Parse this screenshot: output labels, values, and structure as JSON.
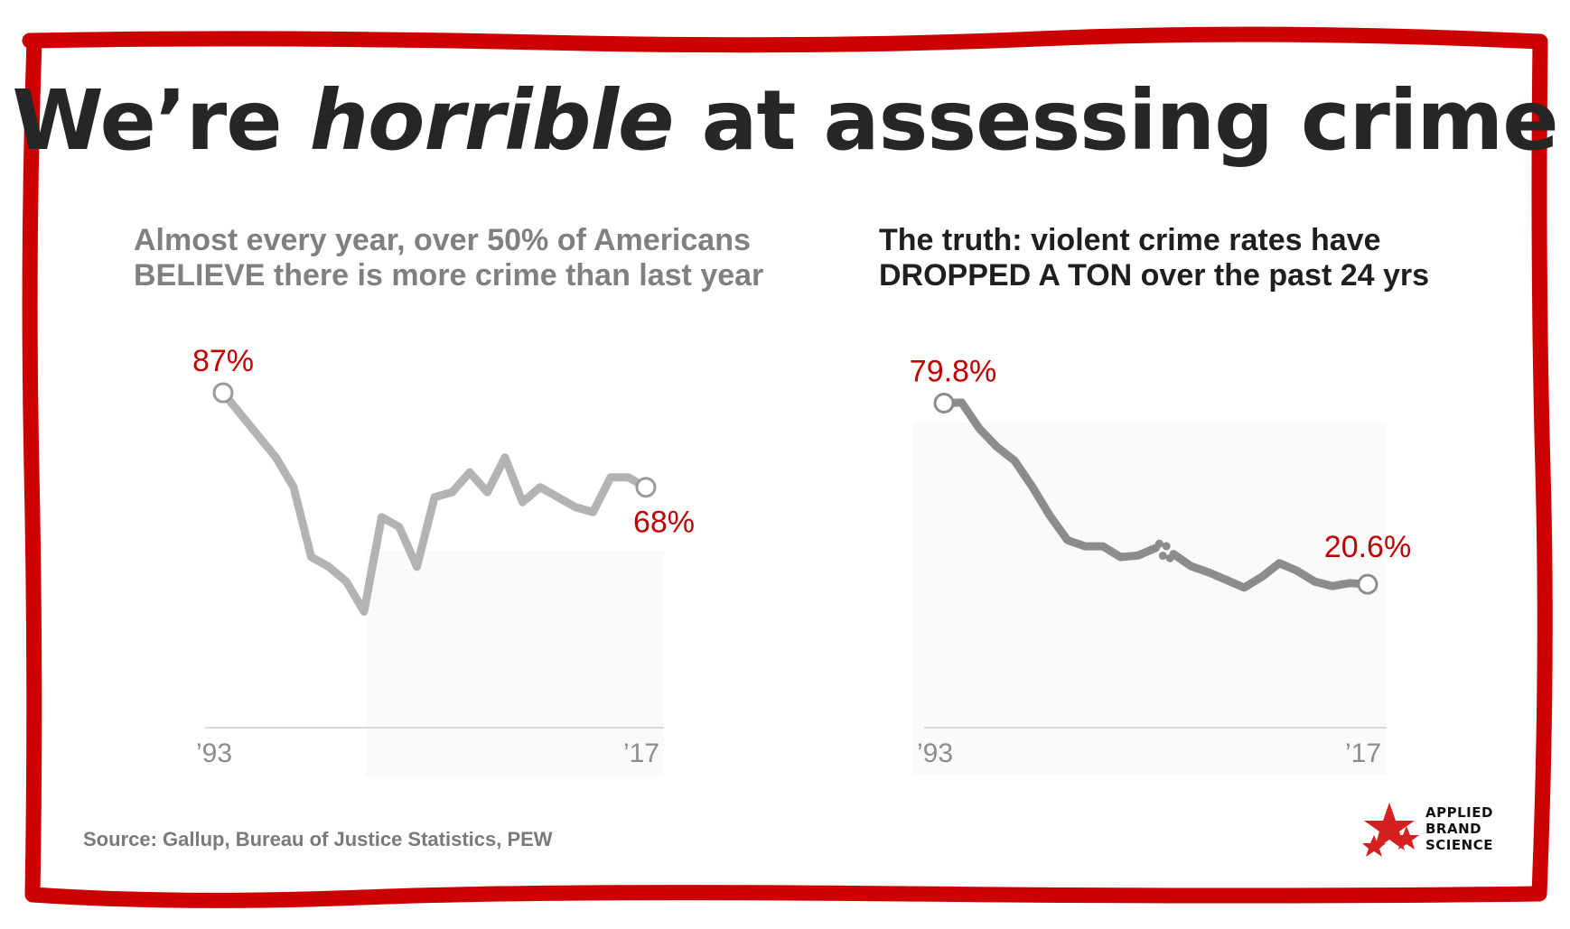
{
  "title": {
    "prefix": "We’re ",
    "emphasis": "horrible",
    "suffix": " at assessing crime"
  },
  "left_subtitle": {
    "line1": "Almost every year, over 50% of Americans",
    "line2": "BELIEVE there is more crime than last year"
  },
  "right_subtitle": {
    "line1": "The truth: violent crime rates have",
    "line2": "DROPPED A TON over the past 24 yrs"
  },
  "source": "Source: Gallup, Bureau of Justice Statistics, PEW",
  "logo": {
    "line1": "APPLIED",
    "line2": "BRAND",
    "line3": "SCIENCE"
  },
  "colors": {
    "frame": "#cc0000",
    "label_red": "#c00000",
    "line_light": "#b3b3b3",
    "line_dark": "#8c8c8c",
    "axis": "#d9d9d9",
    "tick": "#8c8c8c"
  },
  "chart_data": [
    {
      "type": "line",
      "name": "perception",
      "title": "Almost every year, over 50% of Americans BELIEVE there is more crime than last year",
      "x_tick_labels": [
        "’93",
        "’17"
      ],
      "x": [
        1993,
        1996,
        1997,
        1998,
        1999,
        2000,
        2001,
        2002,
        2003,
        2004,
        2005,
        2006,
        2007,
        2008,
        2009,
        2010,
        2011,
        2012,
        2013,
        2014,
        2015,
        2016,
        2017
      ],
      "values": [
        87,
        74,
        68,
        54,
        52,
        49,
        43,
        62,
        60,
        52,
        66,
        67,
        71,
        67,
        74,
        65,
        68,
        66,
        64,
        63,
        70,
        70,
        68
      ],
      "ylim": [
        30,
        95
      ],
      "annotations": [
        {
          "x": 1993,
          "label": "87%"
        },
        {
          "x": 2017,
          "label": "68%"
        }
      ]
    },
    {
      "type": "line",
      "name": "violent-crime-rate",
      "title": "The truth: violent crime rates have DROPPED A TON over the past 24 yrs",
      "x_tick_labels": [
        "’93",
        "’17"
      ],
      "x": [
        1993,
        1994,
        1995,
        1996,
        1997,
        1998,
        1999,
        2000,
        2001,
        2002,
        2003,
        2004,
        2005,
        2006,
        2007,
        2008,
        2009,
        2010,
        2011,
        2012,
        2013,
        2014,
        2015,
        2016,
        2017
      ],
      "values": [
        79.8,
        80.0,
        71.5,
        65.5,
        61.0,
        52.5,
        43.0,
        35.0,
        33.0,
        33.0,
        29.5,
        30.0,
        32.5,
        30.5,
        26.5,
        24.5,
        22.0,
        19.5,
        23.0,
        27.5,
        25.0,
        21.5,
        20.0,
        21.0,
        20.6
      ],
      "break_segment": {
        "x_start": 2005,
        "x_end": 2006,
        "style": "dotted"
      },
      "ylim": [
        0,
        95
      ],
      "annotations": [
        {
          "x": 1993,
          "label": "79.8%"
        },
        {
          "x": 2017,
          "label": "20.6%"
        }
      ]
    }
  ]
}
